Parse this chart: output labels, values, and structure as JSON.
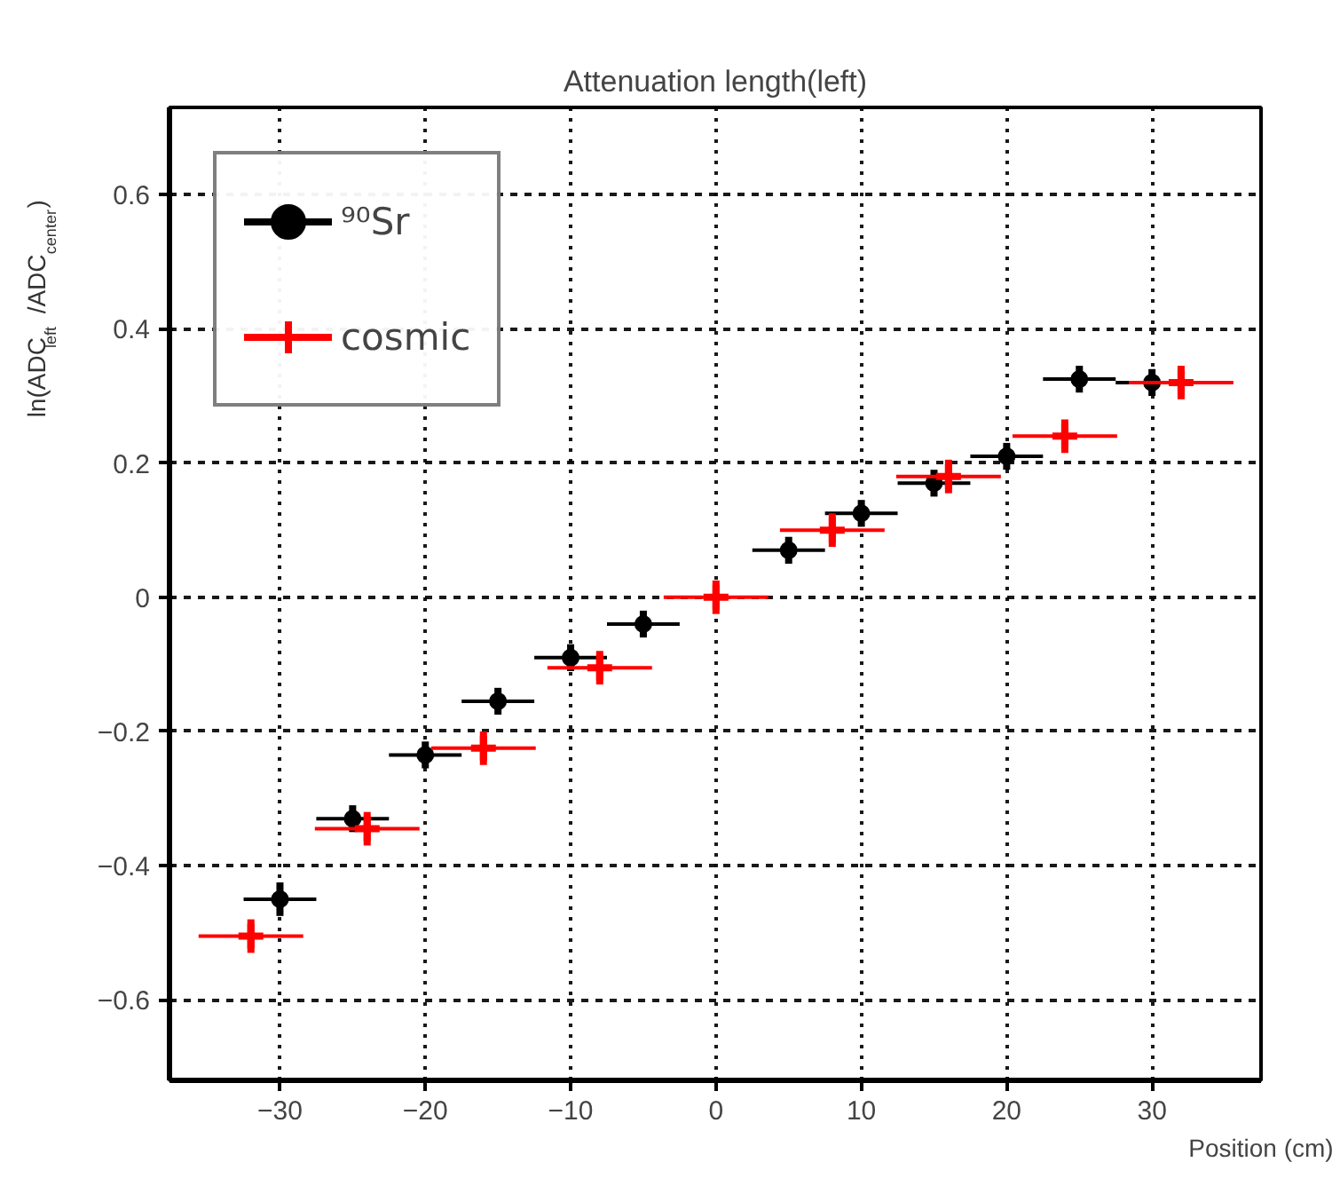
{
  "chart_data": {
    "type": "scatter",
    "title": "Attenuation length(left)",
    "xlabel": "Position (cm)",
    "ylabel": "ln(ADC$_{left}$ /ADC$_{center}$)",
    "xlim": [
      -37.6,
      37.5
    ],
    "ylim": [
      -0.72,
      0.73
    ],
    "xticks": [
      {
        "value": -30,
        "label": "−30"
      },
      {
        "value": -20,
        "label": "−20"
      },
      {
        "value": -10,
        "label": "−10"
      },
      0,
      10,
      20,
      30
    ],
    "yticks": [
      {
        "value": -0.6,
        "label": "−0.6"
      },
      {
        "value": -0.4,
        "label": "−0.4"
      },
      {
        "value": -0.2,
        "label": "−0.2"
      },
      0,
      0.2,
      0.4,
      0.6
    ],
    "grid": true,
    "legend": "top left",
    "series": [
      {
        "name": "⁹⁰Sr",
        "color": "#000000",
        "marker": "circle",
        "x": [
          -30,
          -25,
          -20,
          -15,
          -10,
          -5,
          5,
          10,
          15,
          20,
          25,
          30
        ],
        "values": [
          -0.45,
          -0.33,
          -0.235,
          -0.155,
          -0.09,
          -0.04,
          0.07,
          0.125,
          0.17,
          0.21,
          0.325,
          0.32
        ],
        "errors": [
          0.025,
          0.02,
          0.02,
          0.02,
          0.02,
          0.02,
          0.02,
          0.02,
          0.02,
          0.02,
          0.02,
          0.02
        ],
        "xerrors": [
          2.5,
          2.5,
          2.5,
          2.5,
          2.5,
          2.5,
          2.5,
          2.5,
          2.5,
          2.5,
          2.5,
          2.5
        ]
      },
      {
        "name": "cosmic",
        "color": "#ff0000",
        "marker": "cross",
        "x": [
          -32,
          -24,
          -16,
          -8,
          0,
          8,
          16,
          24,
          32
        ],
        "values": [
          -0.505,
          -0.345,
          -0.225,
          -0.105,
          0,
          0.1,
          0.18,
          0.24,
          0.32
        ],
        "errors": [
          0.025,
          0.025,
          0.025,
          0.025,
          0.025,
          0.025,
          0.025,
          0.025,
          0.025
        ],
        "xerrors": [
          3.6,
          3.6,
          3.6,
          3.6,
          3.6,
          3.6,
          3.6,
          3.6,
          3.6
        ]
      }
    ]
  }
}
